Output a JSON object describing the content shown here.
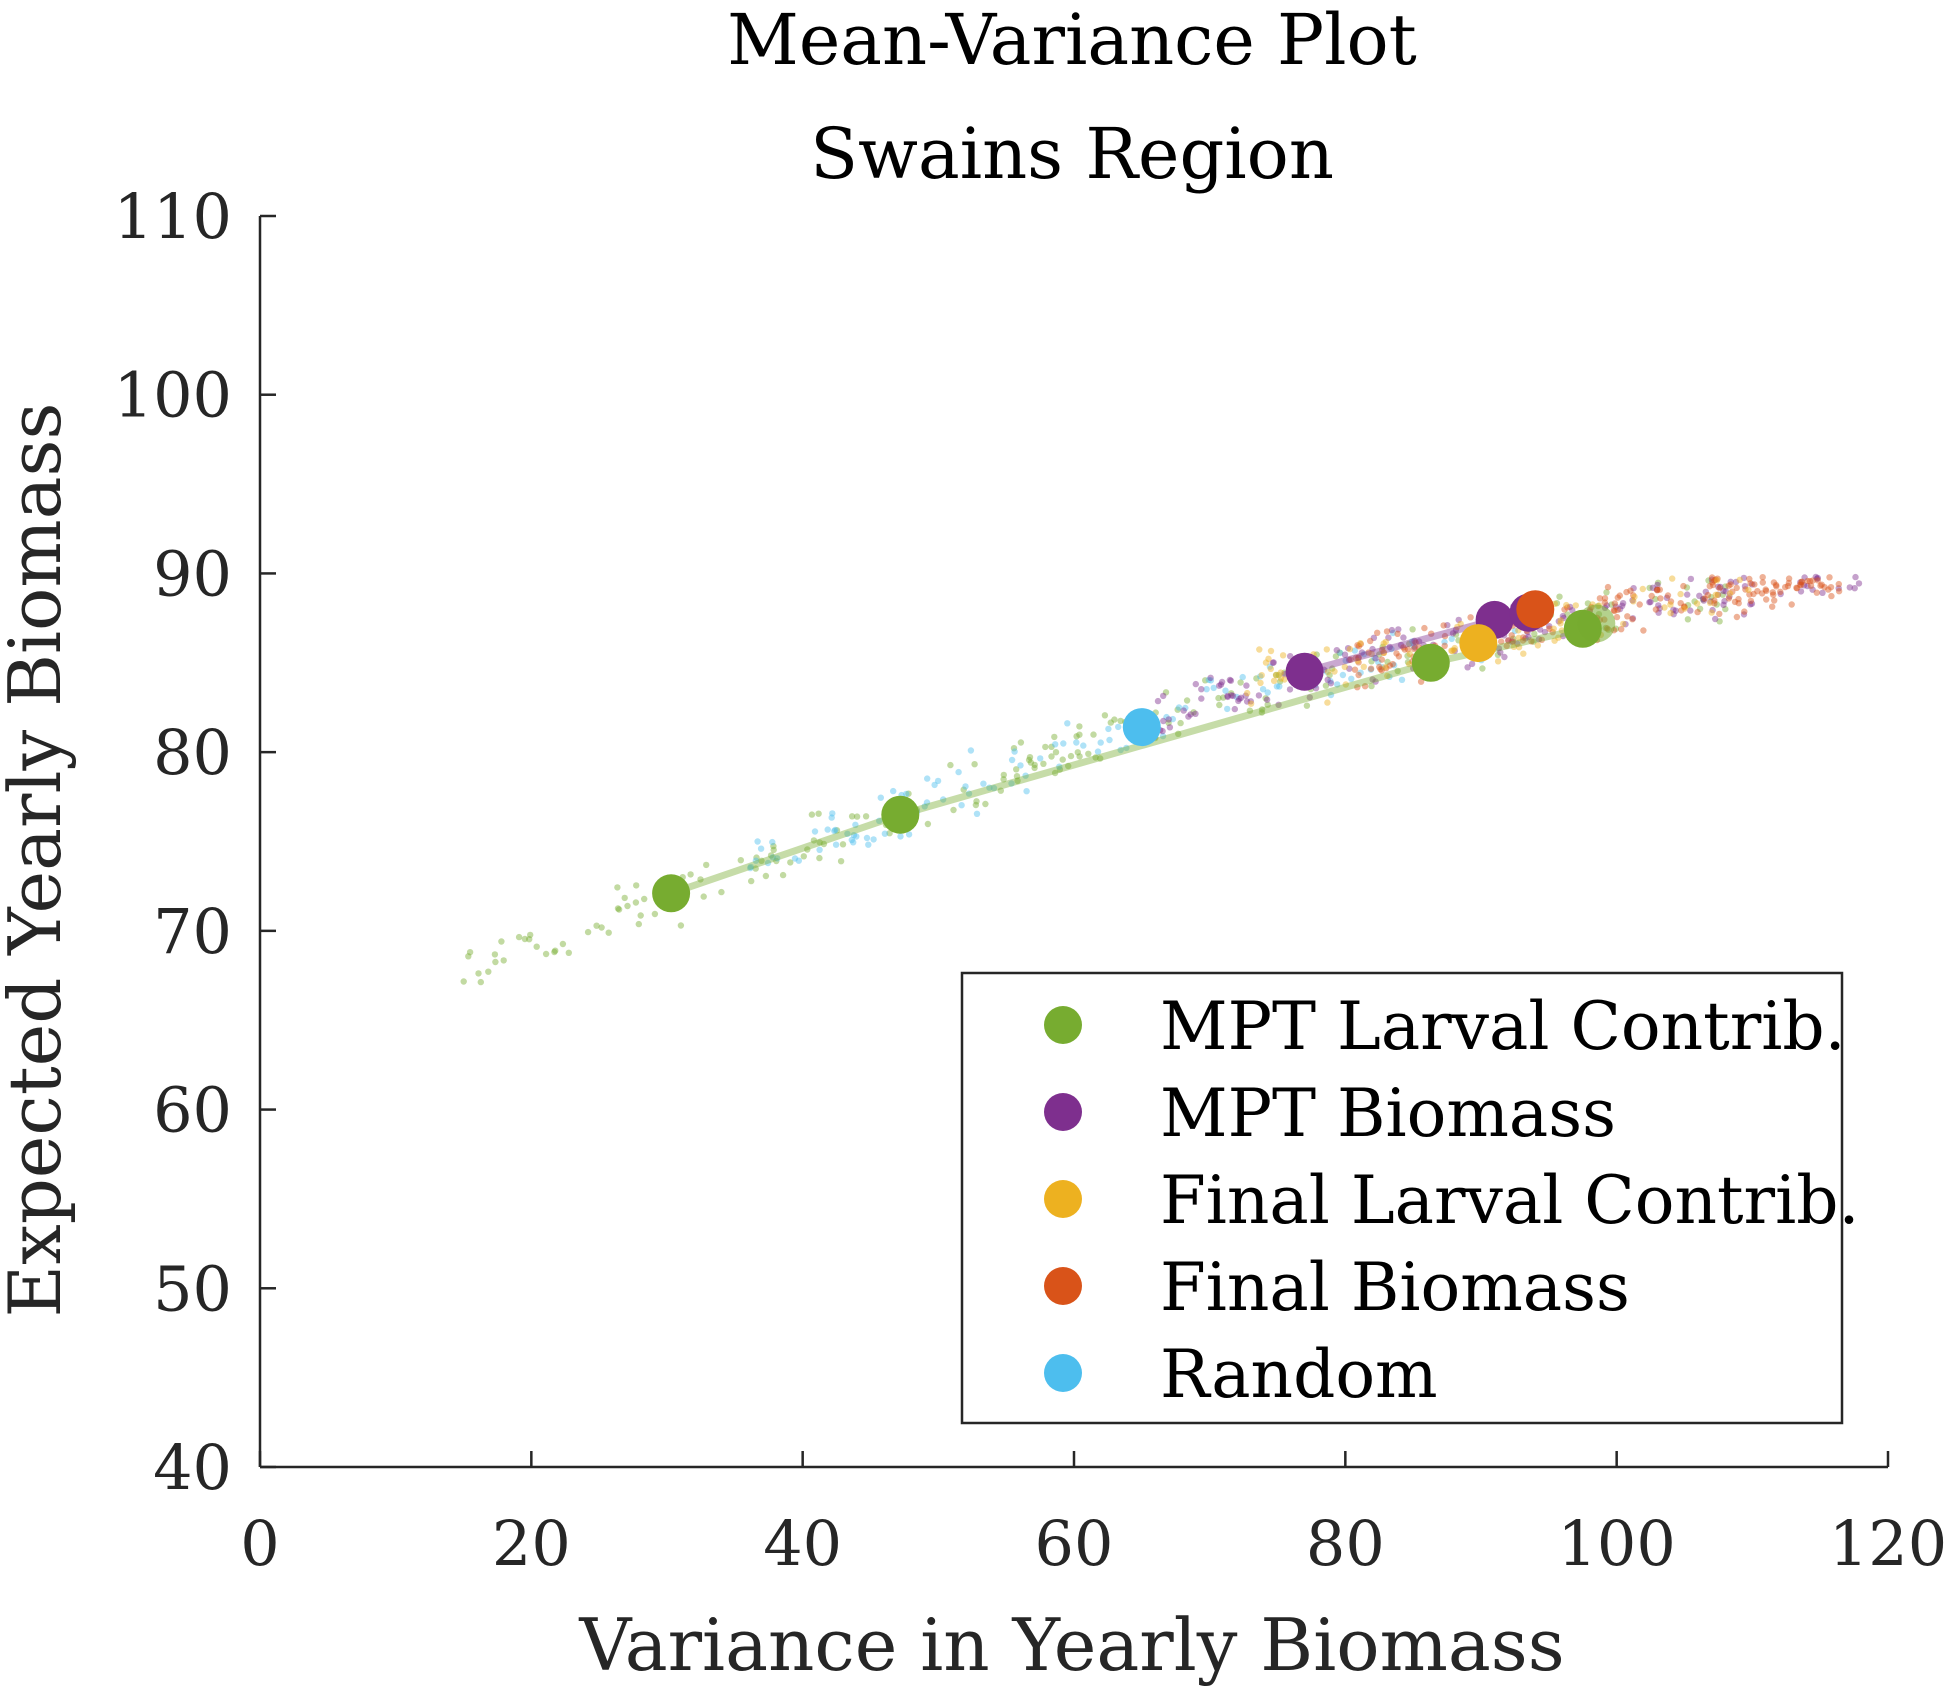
{
  "chart_data": {
    "type": "scatter",
    "title": "Mean-Variance Plot",
    "subtitle": "Swains Region",
    "xlabel": "Variance in Yearly Biomass",
    "ylabel": "Expected Yearly Biomass",
    "xlim": [
      0,
      120
    ],
    "ylim": [
      40,
      110
    ],
    "xticks": [
      0,
      20,
      40,
      60,
      80,
      100,
      120
    ],
    "yticks": [
      40,
      50,
      60,
      70,
      80,
      90,
      100,
      110
    ],
    "grid": false,
    "legend_position": "bottom-right",
    "colors": {
      "mpt_larval": "#77AC30",
      "mpt_biomass": "#7E2F8E",
      "final_larval": "#EDB120",
      "final_biomass": "#D95319",
      "random": "#4DBEEE"
    },
    "series": [
      {
        "name": "MPT Larval Contrib.",
        "color": "#77AC30",
        "frontier": true,
        "x": [
          30.3,
          47.2,
          86.3,
          97.5,
          98.5
        ],
        "y": [
          72.1,
          76.5,
          85.0,
          86.9,
          87.2
        ]
      },
      {
        "name": "MPT Biomass",
        "color": "#7E2F8E",
        "frontier": true,
        "x": [
          77.0,
          91.0,
          93.5
        ],
        "y": [
          84.5,
          87.4,
          87.8
        ]
      },
      {
        "name": "Final Larval Contrib.",
        "color": "#EDB120",
        "frontier": false,
        "x": [
          89.8
        ],
        "y": [
          86.1
        ]
      },
      {
        "name": "Final Biomass",
        "color": "#D95319",
        "frontier": false,
        "x": [
          94.0
        ],
        "y": [
          88.0
        ]
      },
      {
        "name": "Random",
        "color": "#4DBEEE",
        "frontier": false,
        "x": [
          65.0
        ],
        "y": [
          81.4
        ]
      }
    ]
  }
}
